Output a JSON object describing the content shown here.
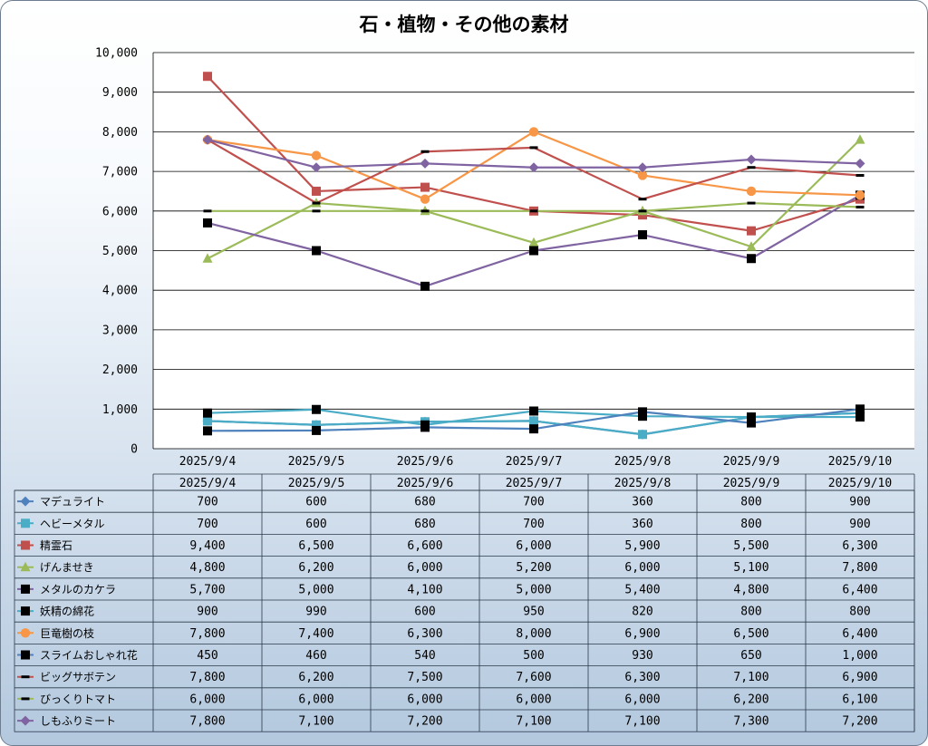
{
  "chart_data": {
    "type": "line",
    "title": "石・植物・その他の素材",
    "xlabel": "",
    "ylabel": "",
    "ylim": [
      0,
      10000
    ],
    "y_ticks": [
      "0",
      "1,000",
      "2,000",
      "3,000",
      "4,000",
      "5,000",
      "6,000",
      "7,000",
      "8,000",
      "9,000",
      "10,000"
    ],
    "y_tick_values": [
      0,
      1000,
      2000,
      3000,
      4000,
      5000,
      6000,
      7000,
      8000,
      9000,
      10000
    ],
    "grid": true,
    "legend": "data-table",
    "categories": [
      "2025/9/4",
      "2025/9/5",
      "2025/9/6",
      "2025/9/7",
      "2025/9/8",
      "2025/9/9",
      "2025/9/10"
    ],
    "series": [
      {
        "name": "マデュライト",
        "color": "#4f81bd",
        "marker": "diamond",
        "values": [
          700,
          600,
          680,
          700,
          360,
          800,
          900
        ],
        "labels": [
          "700",
          "600",
          "680",
          "700",
          "360",
          "800",
          "900"
        ]
      },
      {
        "name": "ヘビーメタル",
        "color": "#4bacc6",
        "marker": "square",
        "values": [
          700,
          600,
          680,
          700,
          360,
          800,
          900
        ],
        "labels": [
          "700",
          "600",
          "680",
          "700",
          "360",
          "800",
          "900"
        ]
      },
      {
        "name": "精霊石",
        "color": "#c0504d",
        "marker": "square",
        "values": [
          9400,
          6500,
          6600,
          6000,
          5900,
          5500,
          6300
        ],
        "labels": [
          "9,400",
          "6,500",
          "6,600",
          "6,000",
          "5,900",
          "5,500",
          "6,300"
        ]
      },
      {
        "name": "げんませき",
        "color": "#9bbb59",
        "marker": "triangle",
        "values": [
          4800,
          6200,
          6000,
          5200,
          6000,
          5100,
          7800
        ],
        "labels": [
          "4,800",
          "6,200",
          "6,000",
          "5,200",
          "6,000",
          "5,100",
          "7,800"
        ]
      },
      {
        "name": "メタルのカケラ",
        "color": "#8064a2",
        "marker": "blacksquare",
        "values": [
          5700,
          5000,
          4100,
          5000,
          5400,
          4800,
          6400
        ],
        "labels": [
          "5,700",
          "5,000",
          "4,100",
          "5,000",
          "5,400",
          "4,800",
          "6,400"
        ]
      },
      {
        "name": "妖精の綿花",
        "color": "#4bacc6",
        "marker": "blacksquare",
        "values": [
          900,
          990,
          600,
          950,
          820,
          800,
          800
        ],
        "labels": [
          "900",
          "990",
          "600",
          "950",
          "820",
          "800",
          "800"
        ]
      },
      {
        "name": "巨竜樹の枝",
        "color": "#f79646",
        "marker": "circle",
        "values": [
          7800,
          7400,
          6300,
          8000,
          6900,
          6500,
          6400
        ],
        "labels": [
          "7,800",
          "7,400",
          "6,300",
          "8,000",
          "6,900",
          "6,500",
          "6,400"
        ]
      },
      {
        "name": "スライムおしゃれ花",
        "color": "#4f81bd",
        "marker": "blacksquare",
        "values": [
          450,
          460,
          540,
          500,
          930,
          650,
          1000
        ],
        "labels": [
          "450",
          "460",
          "540",
          "500",
          "930",
          "650",
          "1,000"
        ]
      },
      {
        "name": "ビッグサボテン",
        "color": "#c0504d",
        "marker": "dash",
        "values": [
          7800,
          6200,
          7500,
          7600,
          6300,
          7100,
          6900
        ],
        "labels": [
          "7,800",
          "6,200",
          "7,500",
          "7,600",
          "6,300",
          "7,100",
          "6,900"
        ]
      },
      {
        "name": "びっくりトマト",
        "color": "#9bbb59",
        "marker": "dash",
        "values": [
          6000,
          6000,
          6000,
          6000,
          6000,
          6200,
          6100
        ],
        "labels": [
          "6,000",
          "6,000",
          "6,000",
          "6,000",
          "6,000",
          "6,200",
          "6,100"
        ]
      },
      {
        "name": "しもふりミート",
        "color": "#8064a2",
        "marker": "diamond",
        "values": [
          7800,
          7100,
          7200,
          7100,
          7100,
          7300,
          7200
        ],
        "labels": [
          "7,800",
          "7,100",
          "7,200",
          "7,100",
          "7,100",
          "7,300",
          "7,200"
        ]
      }
    ]
  }
}
